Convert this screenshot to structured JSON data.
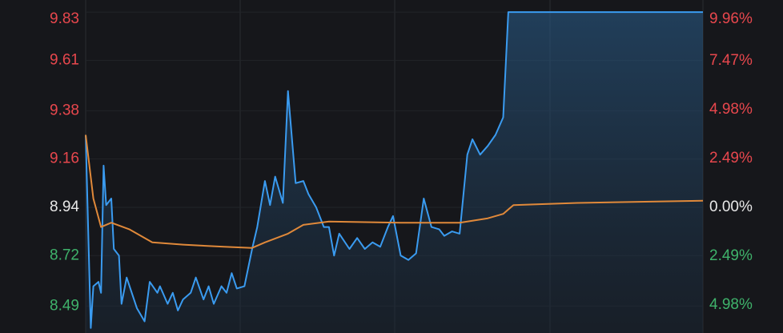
{
  "chart_data": {
    "type": "line",
    "xlim": [
      0,
      241
    ],
    "ylim": [
      8.367,
      9.885
    ],
    "yticks": [
      9.83,
      9.61,
      9.38,
      9.16,
      8.94,
      8.72,
      8.49
    ],
    "y2lim": [
      -6.41,
      10.57
    ],
    "y2ticks": [
      {
        "value": 9.96,
        "label": "9.96%"
      },
      {
        "value": 7.47,
        "label": "7.47%"
      },
      {
        "value": 4.98,
        "label": "4.98%"
      },
      {
        "value": 2.49,
        "label": "2.49%"
      },
      {
        "value": 0,
        "label": "0.00%"
      },
      {
        "value": -2.49,
        "label": "2.49%"
      },
      {
        "value": -4.98,
        "label": "4.98%"
      }
    ],
    "grid": true,
    "series": [
      {
        "color": "#3a9bf0",
        "x": [
          0,
          2,
          3,
          5,
          6,
          7,
          8,
          10,
          11,
          13,
          14,
          16,
          18,
          20,
          23,
          25,
          28,
          29,
          32,
          34,
          36,
          38,
          41,
          43,
          46,
          48,
          50,
          53,
          55,
          57,
          59,
          62,
          65,
          67,
          70,
          72,
          74,
          77,
          79,
          82,
          85,
          87,
          90,
          93,
          95,
          97,
          99,
          103,
          106,
          109,
          112,
          115,
          118,
          120,
          123,
          126,
          129,
          132,
          135,
          138,
          140,
          143,
          146,
          149,
          151,
          154,
          157,
          160,
          163,
          165,
          241
        ],
        "values": [
          9.27,
          8.39,
          8.58,
          8.6,
          8.55,
          9.13,
          8.95,
          8.98,
          8.75,
          8.72,
          8.5,
          8.62,
          8.55,
          8.48,
          8.42,
          8.6,
          8.55,
          8.58,
          8.5,
          8.55,
          8.47,
          8.52,
          8.55,
          8.62,
          8.52,
          8.58,
          8.5,
          8.58,
          8.55,
          8.64,
          8.57,
          8.58,
          8.75,
          8.85,
          9.06,
          8.95,
          9.08,
          8.96,
          9.47,
          9.05,
          9.06,
          9.0,
          8.94,
          8.85,
          8.85,
          8.72,
          8.82,
          8.75,
          8.8,
          8.75,
          8.78,
          8.76,
          8.85,
          8.9,
          8.72,
          8.7,
          8.73,
          8.98,
          8.85,
          8.84,
          8.81,
          8.83,
          8.82,
          9.18,
          9.25,
          9.18,
          9.22,
          9.27,
          9.35,
          9.83,
          9.83
        ]
      },
      {
        "color": "#e0893a",
        "x": [
          0,
          3,
          6,
          10,
          17,
          26,
          38,
          54,
          65,
          70,
          79,
          85,
          95,
          123,
          146,
          157,
          163,
          167,
          192,
          241
        ],
        "values": [
          9.27,
          8.98,
          8.85,
          8.87,
          8.84,
          8.78,
          8.77,
          8.76,
          8.755,
          8.78,
          8.82,
          8.86,
          8.875,
          8.87,
          8.87,
          8.89,
          8.91,
          8.95,
          8.96,
          8.97
        ]
      }
    ]
  }
}
